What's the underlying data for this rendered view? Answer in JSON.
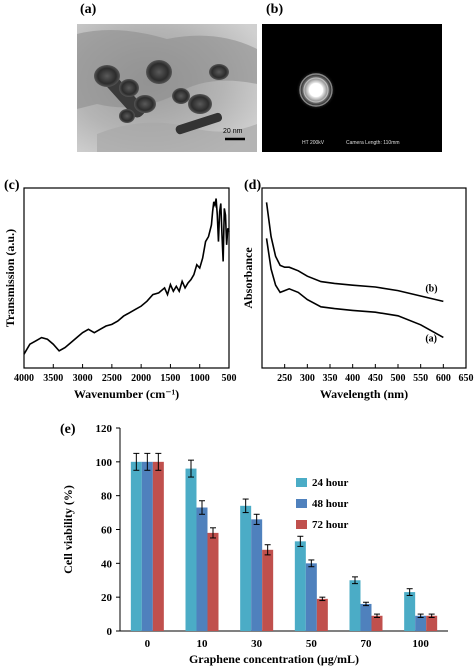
{
  "panels": {
    "a": {
      "label": "(a)",
      "scale_bar": "20 nm"
    },
    "b": {
      "label": "(b)",
      "info_left": "HT 200kV",
      "info_right": "Camera Length: 110mm"
    },
    "c": {
      "label": "(c)"
    },
    "d": {
      "label": "(d)"
    },
    "e": {
      "label": "(e)"
    }
  },
  "colors": {
    "tem_bg": "#bcbcbc",
    "particle": "#2b2b2b",
    "series_24": "#4bacc6",
    "series_48": "#4f81bd",
    "series_72": "#c0504d"
  },
  "chart_data": [
    {
      "id": "c",
      "type": "line",
      "xlabel": "Wavenumber (cm⁻¹)",
      "ylabel": "Transmission (a.u.)",
      "xlim": [
        4000,
        500
      ],
      "xticks": [
        4000,
        3500,
        3000,
        2500,
        2000,
        1500,
        1000,
        500
      ],
      "x": [
        4000,
        3900,
        3800,
        3700,
        3600,
        3500,
        3400,
        3300,
        3200,
        3100,
        3000,
        2900,
        2800,
        2700,
        2600,
        2500,
        2400,
        2300,
        2200,
        2100,
        2000,
        1900,
        1800,
        1700,
        1600,
        1550,
        1500,
        1450,
        1400,
        1350,
        1300,
        1250,
        1200,
        1150,
        1100,
        1050,
        1000,
        950,
        900,
        850,
        800,
        780,
        760,
        740,
        720,
        700,
        680,
        660,
        640,
        620,
        600,
        580,
        560,
        540,
        520,
        500
      ],
      "y": [
        0.04,
        0.1,
        0.12,
        0.14,
        0.13,
        0.1,
        0.06,
        0.08,
        0.11,
        0.14,
        0.17,
        0.19,
        0.17,
        0.19,
        0.21,
        0.22,
        0.24,
        0.27,
        0.29,
        0.31,
        0.33,
        0.36,
        0.4,
        0.41,
        0.44,
        0.4,
        0.46,
        0.42,
        0.45,
        0.42,
        0.48,
        0.44,
        0.47,
        0.49,
        0.52,
        0.58,
        0.56,
        0.62,
        0.72,
        0.75,
        0.82,
        0.9,
        0.96,
        0.94,
        0.98,
        0.88,
        0.72,
        0.9,
        0.95,
        0.76,
        0.6,
        0.92,
        0.88,
        0.7,
        0.8,
        0.78
      ]
    },
    {
      "id": "d",
      "type": "line",
      "xlabel": "Wavelength (nm)",
      "ylabel": "Absorbance",
      "xlim": [
        200,
        650
      ],
      "xticks": [
        250,
        300,
        350,
        400,
        450,
        500,
        550,
        600,
        650
      ],
      "series": [
        {
          "name": "(a)",
          "x": [
            210,
            220,
            230,
            240,
            250,
            260,
            280,
            300,
            330,
            360,
            400,
            450,
            500,
            550,
            600
          ],
          "y": [
            0.72,
            0.55,
            0.46,
            0.42,
            0.43,
            0.44,
            0.42,
            0.38,
            0.34,
            0.33,
            0.32,
            0.31,
            0.29,
            0.24,
            0.17
          ]
        },
        {
          "name": "(b)",
          "x": [
            210,
            220,
            230,
            240,
            250,
            260,
            280,
            300,
            330,
            360,
            400,
            450,
            500,
            550,
            600
          ],
          "y": [
            0.92,
            0.73,
            0.62,
            0.57,
            0.56,
            0.56,
            0.54,
            0.51,
            0.48,
            0.47,
            0.46,
            0.45,
            0.43,
            0.4,
            0.37
          ]
        }
      ]
    },
    {
      "id": "e",
      "type": "bar",
      "xlabel": "Graphene concentration (μg/mL)",
      "ylabel": "Cell viability (%)",
      "ylim": [
        0,
        120
      ],
      "yticks": [
        0,
        20,
        40,
        60,
        80,
        100,
        120
      ],
      "categories": [
        "0",
        "10",
        "30",
        "50",
        "70",
        "100"
      ],
      "legend_position": "right-middle",
      "series": [
        {
          "name": "24 hour",
          "values": [
            100,
            96,
            74,
            53,
            30,
            23
          ],
          "errors": [
            5,
            5,
            4,
            3,
            2,
            2
          ]
        },
        {
          "name": "48 hour",
          "values": [
            100,
            73,
            66,
            40,
            16,
            9
          ],
          "errors": [
            5,
            4,
            3,
            2,
            1,
            1
          ]
        },
        {
          "name": "72 hour",
          "values": [
            100,
            58,
            48,
            19,
            9,
            9
          ],
          "errors": [
            5,
            3,
            3,
            1,
            1,
            1
          ]
        }
      ]
    }
  ]
}
